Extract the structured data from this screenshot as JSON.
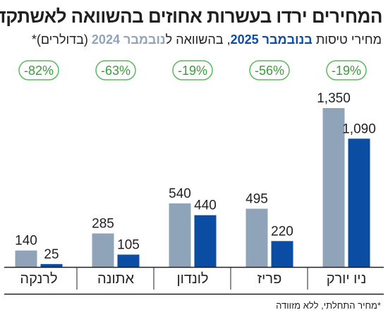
{
  "title": "המחירים ירדו בעשרות אחוזים בהשוואה לאשתקד",
  "subtitle": {
    "prefix": "מחירי טיסות ",
    "current_period": "בנובמבר 2025",
    "middle": ", בהשוואה ל",
    "previous_period": "נובמבר 2024",
    "suffix": " (בדולרים)*"
  },
  "footnote": "*מחיר התחלתי, ללא מזוודה",
  "colors": {
    "previous": "#8fa4b8",
    "current": "#0a4da2",
    "badge_border": "#5cb85c",
    "badge_text": "#3a9a3a"
  },
  "chart_data": {
    "type": "bar",
    "categories": [
      "ניו יורק",
      "פריז",
      "לונדון",
      "אתונה",
      "לרנקה"
    ],
    "series": [
      {
        "name": "נובמבר 2024",
        "values": [
          1350,
          495,
          540,
          285,
          140
        ]
      },
      {
        "name": "נובמבר 2025",
        "values": [
          1090,
          220,
          440,
          105,
          25
        ]
      }
    ],
    "value_labels": {
      "previous": [
        "1,350",
        "495",
        "540",
        "285",
        "140"
      ],
      "current": [
        "1,090",
        "220",
        "440",
        "105",
        "25"
      ]
    },
    "change_labels": [
      "-19%",
      "-56%",
      "-19%",
      "-63%",
      "-82%"
    ],
    "ylim": [
      0,
      1350
    ],
    "grid": false,
    "legend": "none"
  }
}
